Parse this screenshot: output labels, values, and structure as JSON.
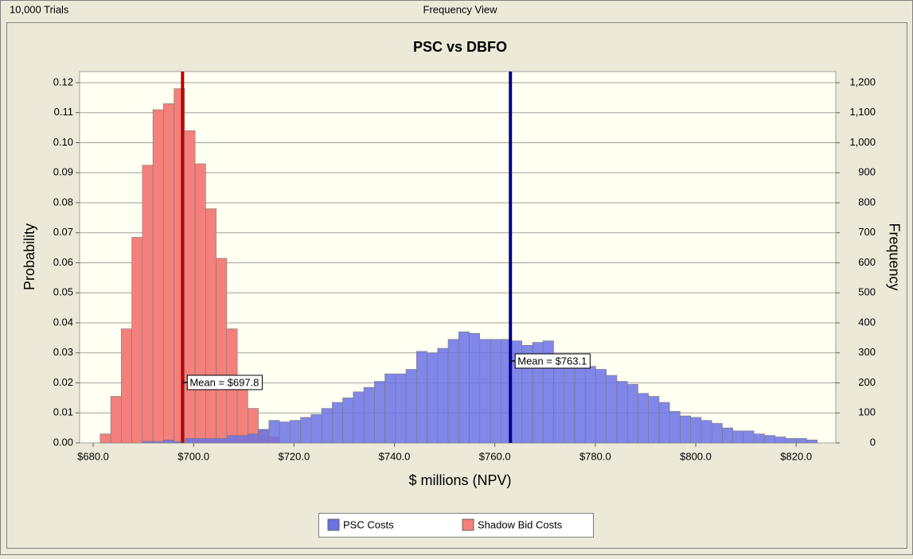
{
  "header": {
    "trials": "10,000 Trials",
    "view": "Frequency View"
  },
  "chart_data": {
    "type": "histogram",
    "title": "PSC vs DBFO",
    "xlabel": "$ millions (NPV)",
    "ylabel": "Probability",
    "y2label": "Frequency",
    "bins": [
      681.4,
      683.5,
      685.6,
      687.7,
      689.8,
      691.9,
      694.0,
      696.1,
      698.2,
      700.3,
      702.4,
      704.5,
      706.6,
      708.7,
      710.8,
      712.9,
      715.0,
      717.1,
      719.2,
      721.3,
      723.4,
      725.5,
      727.6,
      729.7,
      731.8,
      733.9,
      736.0,
      738.1,
      740.2,
      742.3,
      744.4,
      746.5,
      748.6,
      750.7,
      752.8,
      754.9,
      757.0,
      759.1,
      761.2,
      763.3,
      765.4,
      767.5,
      769.6,
      771.7,
      773.8,
      775.9,
      778.0,
      780.1,
      782.2,
      784.3,
      786.4,
      788.5,
      790.6,
      792.7,
      794.8,
      796.9,
      799.0,
      801.1,
      803.2,
      805.3,
      807.4,
      809.5,
      811.6,
      813.7,
      815.8,
      817.9,
      820.0,
      822.1,
      824.2
    ],
    "series": [
      {
        "name": "PSC Costs",
        "color": "#6b72e6",
        "values": [
          0,
          0,
          0,
          0,
          0.0005,
          0.0005,
          0.001,
          0.0005,
          0.0015,
          0.0015,
          0.0015,
          0.0015,
          0.0025,
          0.0025,
          0.003,
          0.0045,
          0.0075,
          0.007,
          0.0075,
          0.0085,
          0.0095,
          0.0115,
          0.0135,
          0.015,
          0.017,
          0.0185,
          0.0205,
          0.023,
          0.023,
          0.0245,
          0.0305,
          0.03,
          0.0315,
          0.0345,
          0.037,
          0.0365,
          0.0345,
          0.0345,
          0.0345,
          0.034,
          0.0325,
          0.0335,
          0.034,
          0.029,
          0.0285,
          0.028,
          0.0255,
          0.0245,
          0.0225,
          0.0205,
          0.0195,
          0.0165,
          0.0155,
          0.0135,
          0.0105,
          0.009,
          0.0085,
          0.0075,
          0.0065,
          0.005,
          0.004,
          0.004,
          0.003,
          0.0025,
          0.002,
          0.0015,
          0.0015,
          0.001
        ]
      },
      {
        "name": "Shadow Bid Costs",
        "color": "#f4807c",
        "values": [
          0.003,
          0.0155,
          0.038,
          0.0685,
          0.0925,
          0.111,
          0.113,
          0.118,
          0.104,
          0.093,
          0.078,
          0.0615,
          0.038,
          0.019,
          0.0115,
          0.0045,
          0.002,
          0,
          0,
          0,
          0,
          0,
          0,
          0,
          0,
          0,
          0,
          0,
          0,
          0,
          0,
          0,
          0,
          0,
          0,
          0,
          0,
          0,
          0,
          0,
          0,
          0,
          0,
          0,
          0,
          0,
          0,
          0,
          0,
          0,
          0,
          0,
          0,
          0,
          0,
          0,
          0,
          0,
          0,
          0,
          0,
          0,
          0,
          0,
          0,
          0,
          0,
          0
        ]
      }
    ],
    "mean_lines": [
      {
        "value": 697.8,
        "label": "Mean = $697.8",
        "color": "#c00000"
      },
      {
        "value": 763.1,
        "label": "Mean = $763.1",
        "color": "#000090"
      }
    ],
    "xlim": [
      677.3,
      827.9
    ],
    "xticks": [
      {
        "value": 680,
        "label": "$680.0"
      },
      {
        "value": 700,
        "label": "$700.0"
      },
      {
        "value": 720,
        "label": "$720.0"
      },
      {
        "value": 740,
        "label": "$740.0"
      },
      {
        "value": 760,
        "label": "$760.0"
      },
      {
        "value": 780,
        "label": "$780.0"
      },
      {
        "value": 800,
        "label": "$800.0"
      },
      {
        "value": 820,
        "label": "$820.0"
      }
    ],
    "ylim": [
      0,
      0.1237
    ],
    "yticks": [
      {
        "value": 0,
        "label": "0.00"
      },
      {
        "value": 0.01,
        "label": "0.01"
      },
      {
        "value": 0.02,
        "label": "0.02"
      },
      {
        "value": 0.03,
        "label": "0.03"
      },
      {
        "value": 0.04,
        "label": "0.04"
      },
      {
        "value": 0.05,
        "label": "0.05"
      },
      {
        "value": 0.06,
        "label": "0.06"
      },
      {
        "value": 0.07,
        "label": "0.07"
      },
      {
        "value": 0.08,
        "label": "0.08"
      },
      {
        "value": 0.09,
        "label": "0.09"
      },
      {
        "value": 0.1,
        "label": "0.10"
      },
      {
        "value": 0.11,
        "label": "0.11"
      },
      {
        "value": 0.12,
        "label": "0.12"
      }
    ],
    "y2lim": [
      0,
      1237
    ],
    "y2ticks": [
      0,
      100,
      200,
      300,
      400,
      500,
      600,
      700,
      800,
      900,
      {
        "value": 1000,
        "label": "1,000"
      },
      {
        "value": 1100,
        "label": "1,100"
      },
      {
        "value": 1200,
        "label": "1,200"
      }
    ],
    "grid": true,
    "legend": "bottom"
  }
}
